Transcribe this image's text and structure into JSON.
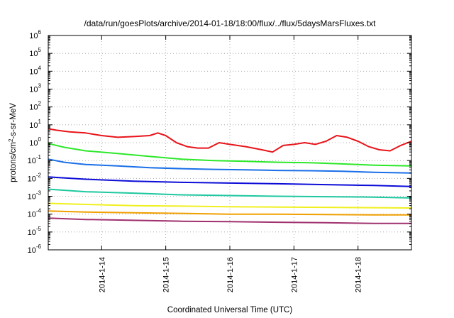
{
  "chart_data": {
    "type": "line",
    "title": "/data/run/goesPlots/archive/2014-01-18/18:00/flux/../flux/5daysMarsFluxes.txt",
    "xlabel": "Coordinated Universal Time (UTC)",
    "ylabel": {
      "prefix": "protons/cm",
      "exp": "2",
      "suffix": "-s-sr-MeV"
    },
    "yscale": "log",
    "ylim": [
      1e-06,
      1000000.0
    ],
    "xlim": [
      "2014-01-13 04:00",
      "2014-01-18 20:00"
    ],
    "grid": true,
    "y_ticks": [
      {
        "value": -6,
        "label": "10",
        "exp": "-6"
      },
      {
        "value": -5,
        "label": "10",
        "exp": "-5"
      },
      {
        "value": -4,
        "label": "10",
        "exp": "-4"
      },
      {
        "value": -3,
        "label": "10",
        "exp": "-3"
      },
      {
        "value": -2,
        "label": "10",
        "exp": "-2"
      },
      {
        "value": -1,
        "label": "10",
        "exp": "-1"
      },
      {
        "value": 0,
        "label": "10",
        "exp": "0"
      },
      {
        "value": 1,
        "label": "10",
        "exp": "1"
      },
      {
        "value": 2,
        "label": "10",
        "exp": "2"
      },
      {
        "value": 3,
        "label": "10",
        "exp": "3"
      },
      {
        "value": 4,
        "label": "10",
        "exp": "4"
      },
      {
        "value": 5,
        "label": "10",
        "exp": "5"
      },
      {
        "value": 6,
        "label": "10",
        "exp": "6"
      }
    ],
    "x_ticks": [
      {
        "date": "2014-01-14 00:00",
        "label": "2014-1-14"
      },
      {
        "date": "2014-01-15 00:00",
        "label": "2014-1-15"
      },
      {
        "date": "2014-01-16 00:00",
        "label": "2014-1-16"
      },
      {
        "date": "2014-01-17 00:00",
        "label": "2014-1-17"
      },
      {
        "date": "2014-01-18 00:00",
        "label": "2014-1-18"
      }
    ],
    "series": [
      {
        "color": "#e8141a",
        "x": [
          "2014-01-13 04:00",
          "2014-01-13 07:00",
          "2014-01-13 12:00",
          "2014-01-13 18:00",
          "2014-01-14 00:00",
          "2014-01-14 06:00",
          "2014-01-14 12:00",
          "2014-01-14 18:00",
          "2014-01-14 21:00",
          "2014-01-15 00:00",
          "2014-01-15 04:00",
          "2014-01-15 08:00",
          "2014-01-15 12:00",
          "2014-01-15 16:00",
          "2014-01-15 20:00",
          "2014-01-16 00:00",
          "2014-01-16 06:00",
          "2014-01-16 12:00",
          "2014-01-16 16:00",
          "2014-01-16 20:00",
          "2014-01-17 00:00",
          "2014-01-17 04:00",
          "2014-01-17 08:00",
          "2014-01-17 12:00",
          "2014-01-17 16:00",
          "2014-01-17 20:00",
          "2014-01-18 00:00",
          "2014-01-18 04:00",
          "2014-01-18 08:00",
          "2014-01-18 12:00",
          "2014-01-18 16:00",
          "2014-01-18 20:00"
        ],
        "y": [
          6,
          5,
          4,
          3.5,
          2.5,
          2,
          2.2,
          2.5,
          3.5,
          2.5,
          1,
          0.6,
          0.5,
          0.5,
          1,
          0.8,
          0.6,
          0.4,
          0.3,
          0.7,
          0.8,
          1,
          0.8,
          1.2,
          2.5,
          2,
          1.2,
          0.6,
          0.4,
          0.35,
          0.7,
          1.2
        ]
      },
      {
        "color": "#2ce82a",
        "x": [
          "2014-01-13 04:00",
          "2014-01-13 10:00",
          "2014-01-13 18:00",
          "2014-01-14 06:00",
          "2014-01-14 18:00",
          "2014-01-15 06:00",
          "2014-01-15 18:00",
          "2014-01-16 06:00",
          "2014-01-16 18:00",
          "2014-01-17 06:00",
          "2014-01-17 18:00",
          "2014-01-18 06:00",
          "2014-01-18 20:00"
        ],
        "y": [
          0.9,
          0.55,
          0.35,
          0.25,
          0.17,
          0.12,
          0.1,
          0.09,
          0.08,
          0.075,
          0.065,
          0.055,
          0.05
        ]
      },
      {
        "color": "#1a6fe8",
        "x": [
          "2014-01-13 04:00",
          "2014-01-13 10:00",
          "2014-01-13 18:00",
          "2014-01-14 06:00",
          "2014-01-14 18:00",
          "2014-01-15 06:00",
          "2014-01-15 18:00",
          "2014-01-16 06:00",
          "2014-01-16 18:00",
          "2014-01-17 06:00",
          "2014-01-17 18:00",
          "2014-01-18 06:00",
          "2014-01-18 20:00"
        ],
        "y": [
          0.12,
          0.08,
          0.06,
          0.05,
          0.04,
          0.035,
          0.032,
          0.03,
          0.028,
          0.027,
          0.025,
          0.022,
          0.02
        ]
      },
      {
        "color": "#0c0cd8",
        "x": [
          "2014-01-13 04:00",
          "2014-01-13 18:00",
          "2014-01-14 12:00",
          "2014-01-15 06:00",
          "2014-01-16 00:00",
          "2014-01-16 18:00",
          "2014-01-17 12:00",
          "2014-01-18 06:00",
          "2014-01-18 20:00"
        ],
        "y": [
          0.012,
          0.009,
          0.007,
          0.006,
          0.0055,
          0.005,
          0.0045,
          0.004,
          0.0035
        ]
      },
      {
        "color": "#1ec8a0",
        "x": [
          "2014-01-13 04:00",
          "2014-01-13 18:00",
          "2014-01-14 12:00",
          "2014-01-15 06:00",
          "2014-01-16 00:00",
          "2014-01-16 18:00",
          "2014-01-17 12:00",
          "2014-01-18 06:00",
          "2014-01-18 20:00"
        ],
        "y": [
          0.0025,
          0.0018,
          0.0015,
          0.0012,
          0.0011,
          0.001,
          0.00095,
          0.0009,
          0.0008
        ]
      },
      {
        "color": "#f0f020",
        "x": [
          "2014-01-13 04:00",
          "2014-01-13 18:00",
          "2014-01-14 12:00",
          "2014-01-15 06:00",
          "2014-01-16 00:00",
          "2014-01-16 18:00",
          "2014-01-17 12:00",
          "2014-01-18 06:00",
          "2014-01-18 20:00"
        ],
        "y": [
          0.0004,
          0.00035,
          0.0003,
          0.00028,
          0.00026,
          0.00025,
          0.00024,
          0.00023,
          0.00022
        ]
      },
      {
        "color": "#f0a000",
        "x": [
          "2014-01-13 04:00",
          "2014-01-13 18:00",
          "2014-01-14 12:00",
          "2014-01-15 06:00",
          "2014-01-16 00:00",
          "2014-01-16 18:00",
          "2014-01-17 12:00",
          "2014-01-18 06:00",
          "2014-01-18 20:00"
        ],
        "y": [
          0.00015,
          0.00013,
          0.00012,
          0.00011,
          0.0001,
          0.0001,
          9.5e-05,
          9e-05,
          9e-05
        ]
      },
      {
        "color": "#a0306e",
        "x": [
          "2014-01-13 04:00",
          "2014-01-13 18:00",
          "2014-01-14 12:00",
          "2014-01-15 06:00",
          "2014-01-16 00:00",
          "2014-01-16 18:00",
          "2014-01-17 12:00",
          "2014-01-18 06:00",
          "2014-01-18 20:00"
        ],
        "y": [
          6e-05,
          5e-05,
          4.5e-05,
          4e-05,
          3.8e-05,
          3.5e-05,
          3.3e-05,
          3e-05,
          3e-05
        ]
      }
    ]
  }
}
